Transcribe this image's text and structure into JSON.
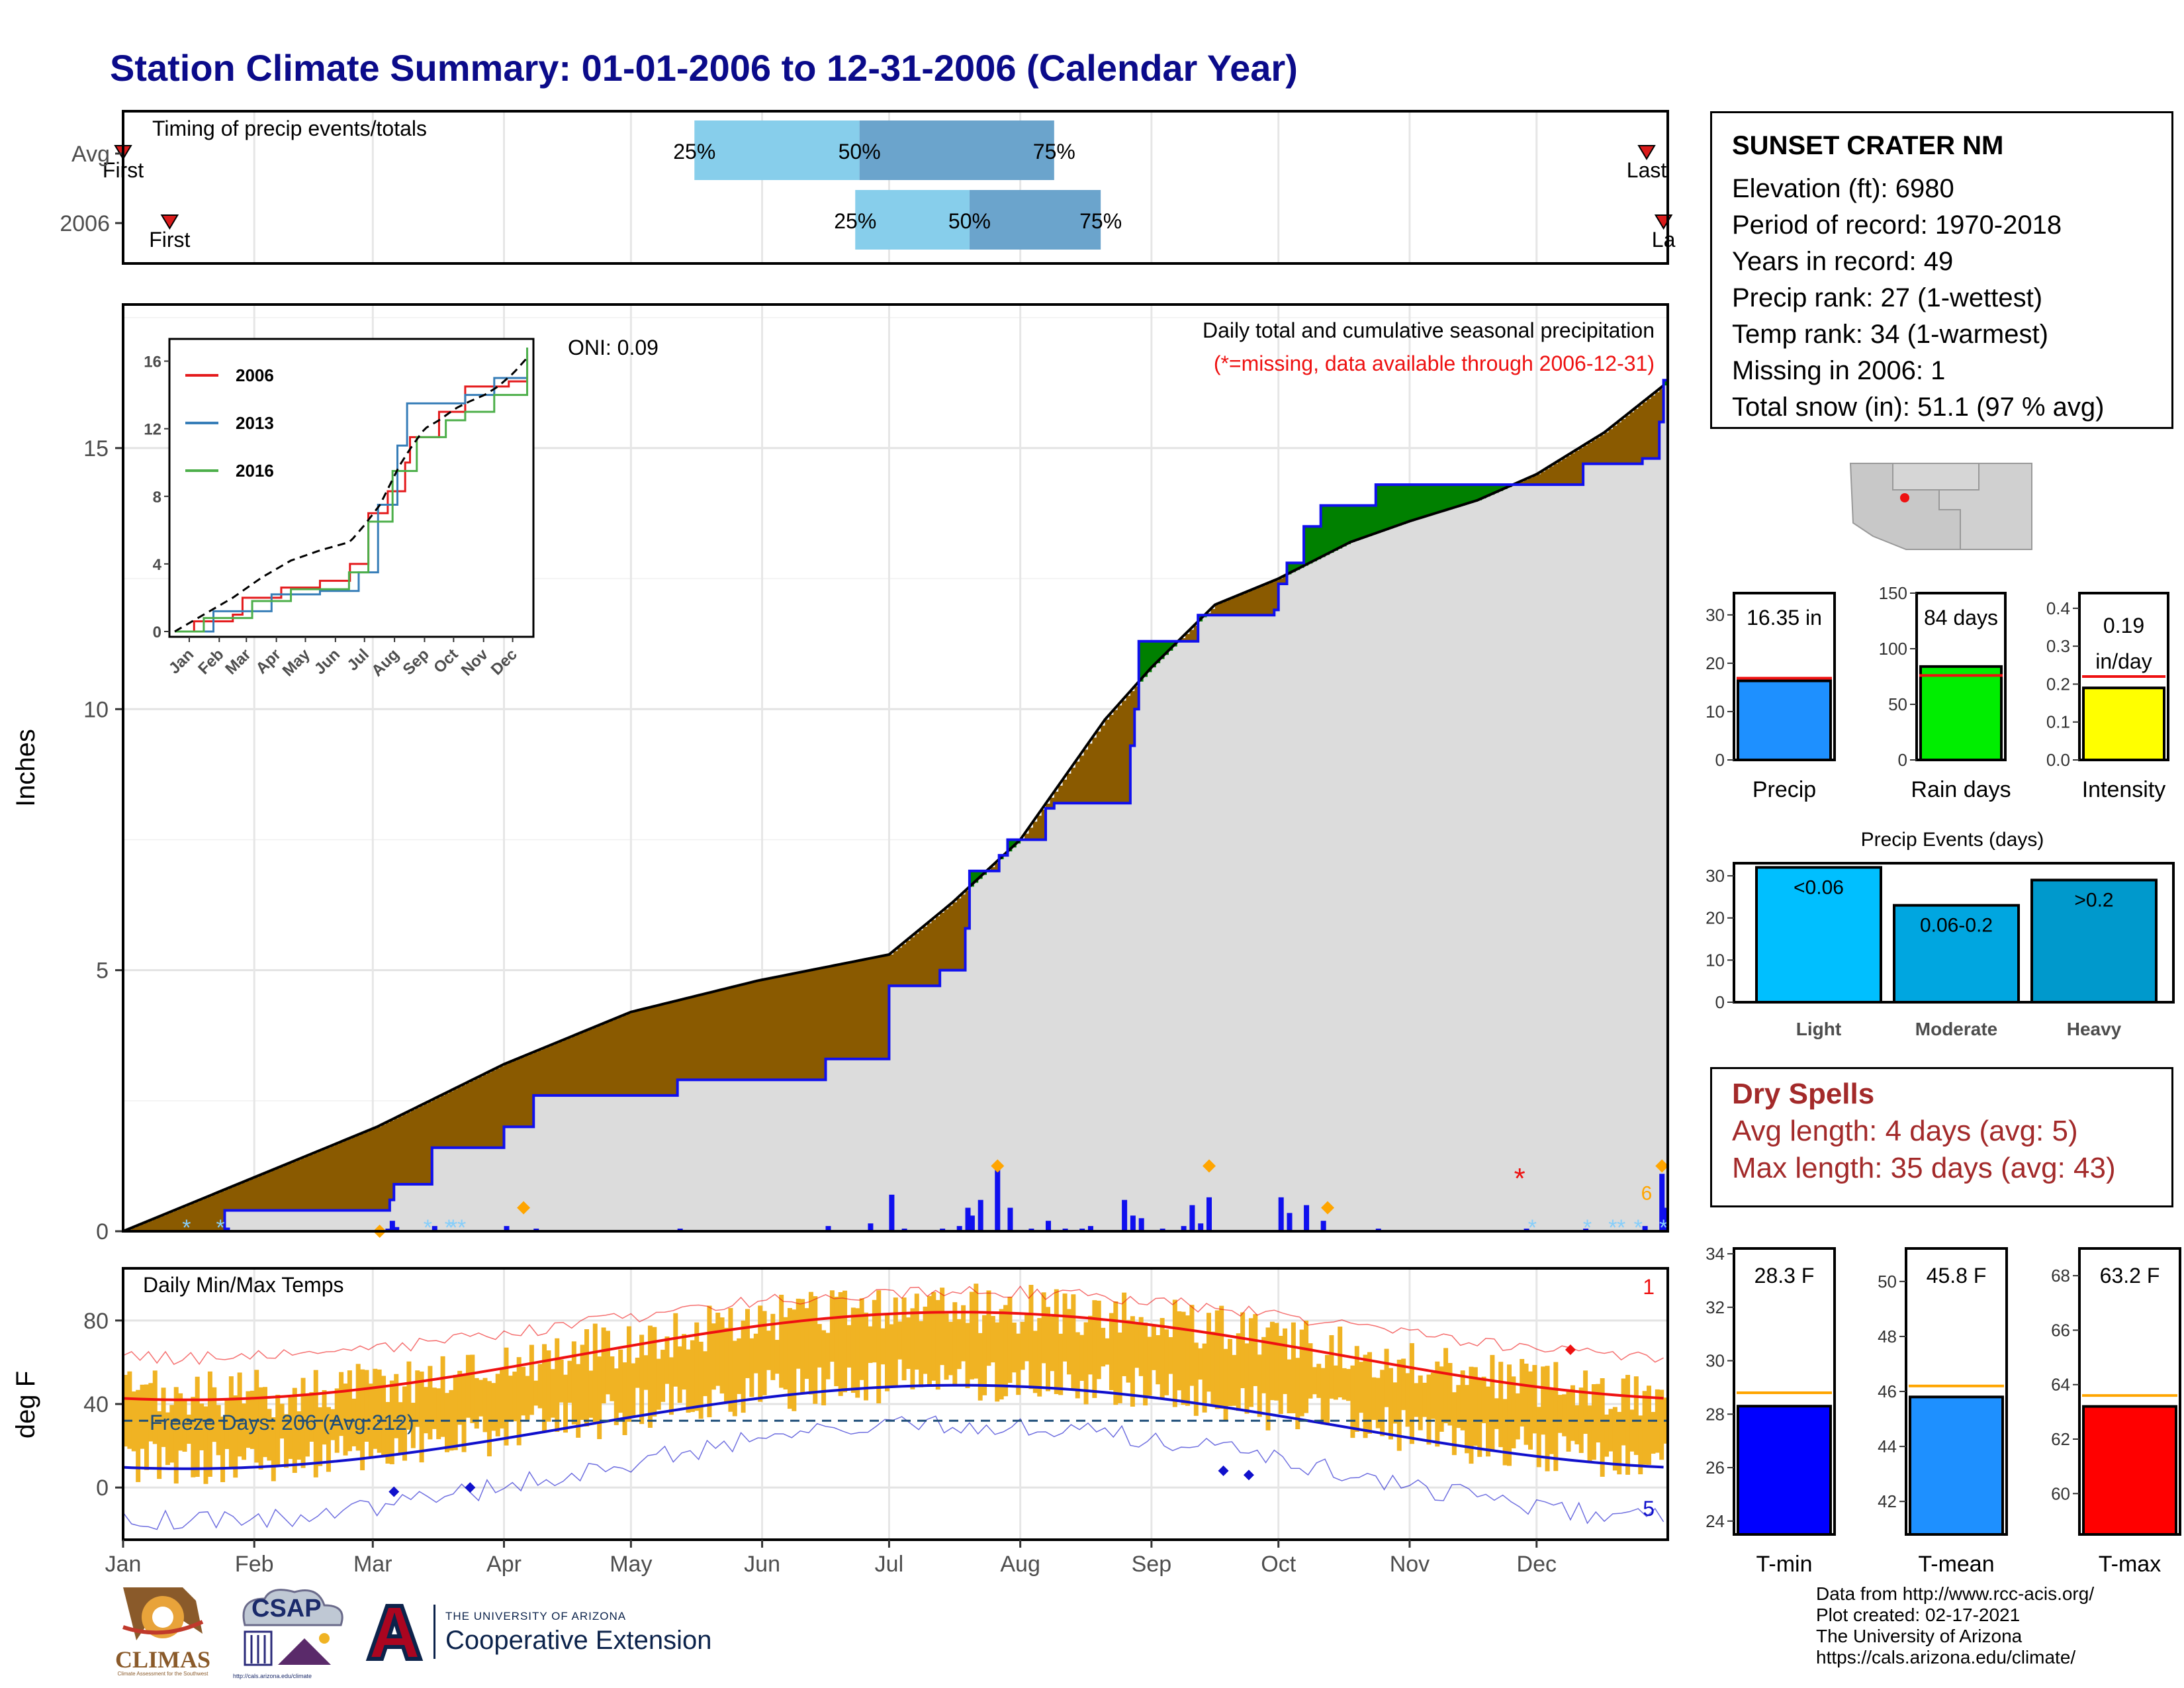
{
  "title": "Station Climate Summary: 01-01-2006 to 12-31-2006 (Calendar Year)",
  "timing": {
    "label": "Timing of precip events/totals",
    "rows": [
      "Avg",
      "2006"
    ],
    "pct_labels": [
      "25%",
      "50%",
      "75%"
    ],
    "first_label": "First",
    "last_label": "Last",
    "last_label_cut": "La",
    "colors": {
      "light": "#87ceeb",
      "dark": "#6ba4cc",
      "marker": "#d91b1b"
    }
  },
  "main": {
    "ylabel": "Inches",
    "oni": "ONI: 0.09",
    "note1": "Daily total and cumulative seasonal precipitation",
    "note2": "(*=missing, data available through 2006-12-31)",
    "count_label": "6",
    "colors": {
      "deficit": "#8a5a00",
      "surplus": "#008000",
      "observed": "#1010ee",
      "area": "#dcdcdc",
      "snow": "#87cefa",
      "event": "#ffa500",
      "missing": "#ee1111"
    }
  },
  "inset": {
    "legend": [
      "2006",
      "2013",
      "2016"
    ],
    "colors": [
      "#e41a1c",
      "#377eb8",
      "#4daf4a"
    ],
    "months": [
      "Jan",
      "Feb",
      "Mar",
      "Apr",
      "May",
      "Jun",
      "Jul",
      "Aug",
      "Sep",
      "Oct",
      "Nov",
      "Dec"
    ],
    "yticks": [
      "0",
      "4",
      "8",
      "12",
      "16"
    ]
  },
  "temps": {
    "label": "Daily Min/Max Temps",
    "ylabel": "deg F",
    "freeze": "Freeze Days: 206 (Avg:212)",
    "record_high_count": "1",
    "record_low_count": "5",
    "yticks": [
      "0",
      "40",
      "80"
    ],
    "colors": {
      "bar": "#f0b323",
      "max": "#ee1111",
      "min": "#1010cc"
    }
  },
  "months_axis": [
    "Jan",
    "Feb",
    "Mar",
    "Apr",
    "May",
    "Jun",
    "Jul",
    "Aug",
    "Sep",
    "Oct",
    "Nov",
    "Dec"
  ],
  "info": {
    "station": "SUNSET CRATER NM",
    "lines": [
      "Elevation (ft): 6980",
      "Period of record: 1970-2018",
      "Years in record: 49",
      "Precip rank: 27 (1-wettest)",
      "Temp rank: 34 (1-warmest)",
      "Missing in 2006: 1",
      "Total snow (in): 51.1 (97 % avg)"
    ]
  },
  "precip_stats": [
    {
      "name": "Precip",
      "label": "16.35 in",
      "value": 16.35,
      "avg": 16.9,
      "yticks": [
        "0",
        "10",
        "20",
        "30"
      ],
      "color": "#1e90ff"
    },
    {
      "name": "Rain days",
      "label": "84 days",
      "value": 84,
      "avg": 76,
      "yticks": [
        "0",
        "50",
        "100",
        "150"
      ],
      "color": "#00ee00"
    },
    {
      "name": "Intensity",
      "label": "0.19",
      "label2": "in/day",
      "value": 0.19,
      "avg": 0.22,
      "yticks": [
        "0.0",
        "0.1",
        "0.2",
        "0.3",
        "0.4"
      ],
      "color": "#ffff00"
    }
  ],
  "events": {
    "title": "Precip Events (days)",
    "cats": [
      "Light",
      "Moderate",
      "Heavy"
    ],
    "labels": [
      "<0.06",
      "0.06-0.2",
      ">0.2"
    ],
    "values": [
      32,
      23,
      29
    ],
    "yticks": [
      "0",
      "10",
      "20",
      "30"
    ],
    "colors": [
      "#00bfff",
      "#00a6e0",
      "#0099cc"
    ]
  },
  "dry": {
    "title": "Dry Spells",
    "avg": "Avg length: 4 days (avg: 5)",
    "max": "Max length: 35 days (avg: 43)"
  },
  "temp_stats": [
    {
      "name": "T-min",
      "label": "28.3 F",
      "value": 28.3,
      "avg": 28.8,
      "yticks": [
        "24",
        "26",
        "28",
        "30",
        "32",
        "34"
      ],
      "color": "#0000ff"
    },
    {
      "name": "T-mean",
      "label": "45.8 F",
      "value": 45.8,
      "avg": 46.2,
      "yticks": [
        "42",
        "44",
        "46",
        "48",
        "50"
      ],
      "color": "#1e90ff"
    },
    {
      "name": "T-max",
      "label": "63.2 F",
      "value": 63.2,
      "avg": 63.6,
      "yticks": [
        "60",
        "62",
        "64",
        "66",
        "68"
      ],
      "color": "#ff0000"
    }
  ],
  "footer": [
    "Data from http://www.rcc-acis.org/",
    "Plot created: 02-17-2021",
    "The University of Arizona",
    "https://cals.arizona.edu/climate/"
  ],
  "logos": {
    "climas": "CLIMAS",
    "climas_sub": "Climate Assessment for the Southwest",
    "csap": "CSAP",
    "csap_url": "http://cals.arizona.edu/climate",
    "ua_top": "THE UNIVERSITY OF ARIZONA",
    "ua_main": "Cooperative Extension"
  }
}
